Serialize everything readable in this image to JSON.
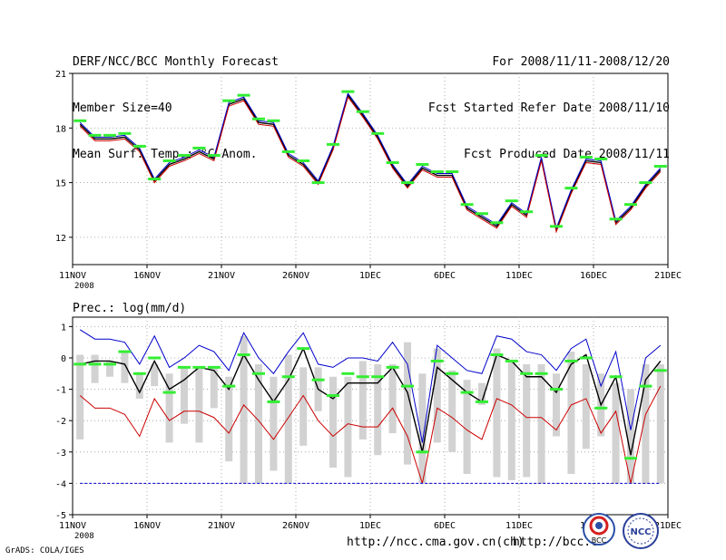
{
  "header": {
    "title": "DERF/NCC/BCC Monthly Forecast",
    "member_size": "Member Size=40",
    "variable": "Mean Surf. Temp.: °C Anom.",
    "period": "For 2008/11/11-2008/12/20",
    "started": "Fcst Started Refer Date 2008/11/10",
    "produced": "Fcst Produced Date 2008/11/11"
  },
  "footer": {
    "credit": "GrADS: COLA/IGES",
    "url1": "http://ncc.cma.gov.cn(ch)",
    "url2": "http://bcc.c",
    "logo_bcc": "BCC",
    "logo_ncc": "NCC"
  },
  "chart_data": [
    {
      "type": "line",
      "title": "Mean Surf. Temp.: °C Anom.",
      "xlabel": "",
      "ylabel": "",
      "x_ticks": [
        "11NOV",
        "16NOV",
        "21NOV",
        "26NOV",
        "1DEC",
        "6DEC",
        "11DEC",
        "16DEC",
        "21DEC"
      ],
      "x_year_label": "2008",
      "y_ticks": [
        12,
        15,
        18,
        21
      ],
      "ylim": [
        10.5,
        21
      ],
      "grid": true,
      "x": [
        0,
        1,
        2,
        3,
        4,
        5,
        6,
        7,
        8,
        9,
        10,
        11,
        12,
        13,
        14,
        15,
        16,
        17,
        18,
        19,
        20,
        21,
        22,
        23,
        24,
        25,
        26,
        27,
        28,
        29,
        30,
        31,
        32,
        33,
        34,
        35,
        36,
        37,
        38,
        39
      ],
      "series": [
        {
          "name": "mean",
          "color": "#000000",
          "values": [
            18.2,
            17.4,
            17.4,
            17.5,
            16.8,
            15.1,
            16.0,
            16.3,
            16.7,
            16.3,
            19.3,
            19.6,
            18.3,
            18.2,
            16.5,
            16.0,
            15.0,
            16.9,
            19.8,
            18.7,
            17.5,
            15.9,
            14.8,
            15.8,
            15.4,
            15.4,
            13.6,
            13.1,
            12.6,
            13.8,
            13.2,
            16.3,
            12.4,
            14.5,
            16.2,
            16.1,
            12.8,
            13.6,
            14.8,
            15.7
          ]
        },
        {
          "name": "upper",
          "color": "#0000cc",
          "values": [
            18.3,
            17.5,
            17.5,
            17.6,
            16.9,
            15.2,
            16.1,
            16.4,
            16.8,
            16.4,
            19.4,
            19.7,
            18.4,
            18.3,
            16.6,
            16.1,
            15.1,
            17.0,
            19.9,
            18.8,
            17.6,
            16.0,
            14.9,
            15.9,
            15.5,
            15.5,
            13.7,
            13.2,
            12.7,
            13.9,
            13.3,
            16.4,
            12.5,
            14.6,
            16.3,
            16.2,
            12.9,
            13.7,
            14.9,
            15.8
          ]
        },
        {
          "name": "lower",
          "color": "#cc0000",
          "values": [
            18.1,
            17.3,
            17.3,
            17.4,
            16.7,
            15.0,
            15.9,
            16.2,
            16.6,
            16.2,
            19.2,
            19.5,
            18.2,
            18.1,
            16.4,
            15.9,
            14.9,
            16.8,
            19.7,
            18.6,
            17.4,
            15.8,
            14.7,
            15.7,
            15.3,
            15.3,
            13.5,
            13.0,
            12.5,
            13.7,
            13.1,
            16.2,
            12.3,
            14.4,
            16.1,
            16.0,
            12.7,
            13.5,
            14.7,
            15.6
          ]
        },
        {
          "name": "markers",
          "color": "#33ee33",
          "values": [
            18.4,
            17.6,
            17.6,
            17.7,
            17.0,
            15.2,
            16.2,
            16.5,
            16.9,
            16.5,
            19.5,
            19.8,
            18.5,
            18.4,
            16.7,
            16.2,
            15.0,
            17.1,
            20.0,
            18.9,
            17.7,
            16.1,
            15.0,
            16.0,
            15.6,
            15.6,
            13.8,
            13.3,
            12.8,
            14.0,
            13.4,
            16.5,
            12.6,
            14.7,
            16.4,
            16.3,
            13.0,
            13.8,
            15.0,
            15.9
          ]
        }
      ]
    },
    {
      "type": "line",
      "title": "Prec.: log(mm/d)",
      "xlabel": "",
      "ylabel": "",
      "x_ticks": [
        "11NOV",
        "16NOV",
        "21NOV",
        "26NOV",
        "1DEC",
        "6DEC",
        "11DEC",
        "16DEC",
        "21DEC"
      ],
      "x_year_label": "2008",
      "y_ticks": [
        -5,
        -4,
        -3,
        -2,
        -1,
        0,
        1
      ],
      "ylim": [
        -5,
        1.3
      ],
      "grid": true,
      "x": [
        0,
        1,
        2,
        3,
        4,
        5,
        6,
        7,
        8,
        9,
        10,
        11,
        12,
        13,
        14,
        15,
        16,
        17,
        18,
        19,
        20,
        21,
        22,
        23,
        24,
        25,
        26,
        27,
        28,
        29,
        30,
        31,
        32,
        33,
        34,
        35,
        36,
        37,
        38,
        39
      ],
      "bars": {
        "name": "spread",
        "color": "#d2d2d2",
        "top": [
          0.1,
          0.1,
          -0.1,
          0.2,
          -0.5,
          -0.2,
          -0.5,
          -0.3,
          -0.3,
          -0.3,
          -0.6,
          0.7,
          -0.2,
          -0.6,
          0.1,
          -0.3,
          -0.3,
          -0.6,
          -0.6,
          -0.1,
          -0.2,
          -0.2,
          0.5,
          -0.5,
          0.3,
          -0.4,
          -0.7,
          -0.8,
          0.3,
          -0.1,
          -0.2,
          -0.2,
          -0.5,
          0.2,
          -0.2,
          -0.5,
          -0.8,
          -1.0,
          -0.2,
          -0.2
        ],
        "bottom": [
          -2.6,
          -0.8,
          -0.6,
          -0.8,
          -1.3,
          -0.9,
          -2.7,
          -2.1,
          -2.7,
          -1.6,
          -3.3,
          -4.0,
          -4.0,
          -3.6,
          -4.0,
          -2.8,
          -1.7,
          -3.5,
          -3.8,
          -2.6,
          -3.1,
          -2.4,
          -3.4,
          -4.0,
          -2.7,
          -3.0,
          -3.7,
          -1.5,
          -3.8,
          -3.9,
          -3.8,
          -4.0,
          -2.5,
          -3.7,
          -2.9,
          -2.5,
          -4.0,
          -4.0,
          -4.0,
          -4.0
        ]
      },
      "series": [
        {
          "name": "mean",
          "color": "#000000",
          "values": [
            -0.2,
            -0.1,
            -0.1,
            -0.2,
            -1.1,
            -0.1,
            -1.0,
            -0.7,
            -0.3,
            -0.4,
            -1.0,
            0.1,
            -0.7,
            -1.4,
            -0.7,
            0.3,
            -1.0,
            -1.3,
            -0.8,
            -0.8,
            -0.8,
            -0.3,
            -1.1,
            -3.0,
            -0.3,
            -0.7,
            -1.1,
            -1.4,
            0.1,
            -0.1,
            -0.6,
            -0.6,
            -1.1,
            -0.2,
            0.1,
            -1.5,
            -0.6,
            -3.1,
            -0.7,
            -0.1
          ]
        },
        {
          "name": "upper",
          "color": "#0000cc",
          "values": [
            0.9,
            0.6,
            0.6,
            0.5,
            -0.2,
            0.7,
            -0.3,
            0.0,
            0.4,
            0.2,
            -0.4,
            0.8,
            0.0,
            -0.5,
            0.2,
            0.8,
            -0.2,
            -0.3,
            0.0,
            0.0,
            -0.1,
            0.5,
            -0.2,
            -2.7,
            0.4,
            0.0,
            -0.4,
            -0.5,
            0.7,
            0.6,
            0.2,
            0.1,
            -0.4,
            0.3,
            0.6,
            -0.9,
            0.2,
            -2.3,
            0.0,
            0.4
          ]
        },
        {
          "name": "lower",
          "color": "#cc0000",
          "values": [
            -1.2,
            -1.6,
            -1.6,
            -1.8,
            -2.5,
            -1.3,
            -2.0,
            -1.7,
            -1.7,
            -1.9,
            -2.4,
            -1.5,
            -2.0,
            -2.6,
            -1.9,
            -1.2,
            -2.0,
            -2.5,
            -2.1,
            -2.2,
            -2.2,
            -1.6,
            -2.5,
            -4.0,
            -1.6,
            -1.9,
            -2.3,
            -2.6,
            -1.3,
            -1.5,
            -1.9,
            -1.9,
            -2.3,
            -1.5,
            -1.3,
            -2.4,
            -1.7,
            -4.0,
            -1.8,
            -0.9
          ]
        },
        {
          "name": "markers",
          "color": "#33ee33",
          "values": [
            -0.2,
            -0.2,
            -0.2,
            0.2,
            -0.5,
            0.0,
            -1.1,
            -0.3,
            -0.3,
            -0.3,
            -0.9,
            0.1,
            -0.5,
            -1.4,
            -0.6,
            0.3,
            -0.7,
            -1.2,
            -0.5,
            -0.6,
            -0.6,
            -0.3,
            -0.9,
            -3.0,
            -0.1,
            -0.5,
            -1.1,
            -1.4,
            0.1,
            -0.1,
            -0.5,
            -0.5,
            -1.0,
            -0.1,
            0.0,
            -1.6,
            -0.6,
            -3.2,
            -0.9,
            -0.4
          ]
        },
        {
          "name": "reference",
          "color": "#0000cc",
          "values": [
            -4,
            -4,
            -4,
            -4,
            -4,
            -4,
            -4,
            -4,
            -4,
            -4,
            -4,
            -4,
            -4,
            -4,
            -4,
            -4,
            -4,
            -4,
            -4,
            -4,
            -4,
            -4,
            -4,
            -4,
            -4,
            -4,
            -4,
            -4,
            -4,
            -4,
            -4,
            -4,
            -4,
            -4,
            -4,
            -4,
            -4,
            -4,
            -4,
            -4
          ]
        }
      ]
    }
  ]
}
